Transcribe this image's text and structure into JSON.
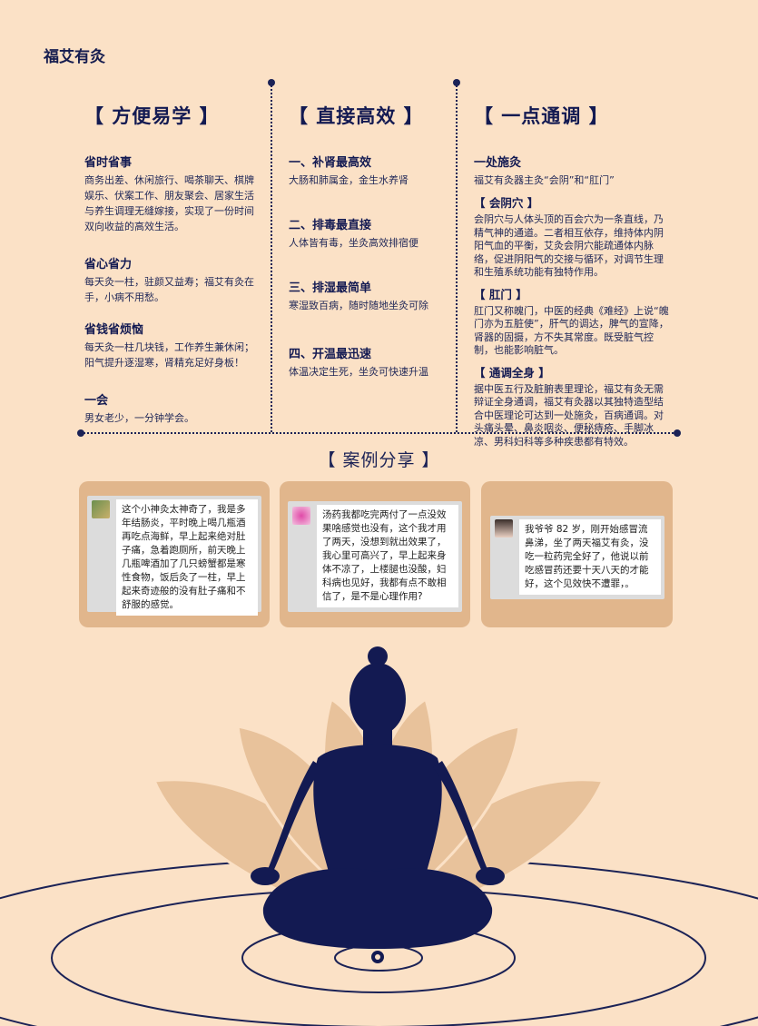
{
  "brand": "福艾有灸",
  "columns": [
    {
      "title": "【 方便易学 】",
      "sections": [
        {
          "heading": "省时省事",
          "text": "商务出差、休闲旅行、喝茶聊天、棋牌娱乐、伏案工作、朋友聚会、居家生活与养生调理无缝嫁接，实现了一份时间双向收益的高效生活。"
        },
        {
          "heading": "省心省力",
          "text": "每天灸一柱，驻颜又益寿；福艾有灸在手，小病不用愁。"
        },
        {
          "heading": "省钱省烦恼",
          "text": "每天灸一柱几块钱，工作养生兼休闲；阳气提升逐湿寒，肾精充足好身板！"
        },
        {
          "heading": "一会",
          "text": "男女老少，一分钟学会。"
        }
      ]
    },
    {
      "title": "【 直接高效 】",
      "sections": [
        {
          "heading": "一、补肾最高效",
          "text": "大肠和肺属金，金生水养肾"
        },
        {
          "heading": "二、排毒最直接",
          "text": "人体皆有毒，坐灸高效排宿便"
        },
        {
          "heading": "三、排湿最简单",
          "text": "寒湿致百病，随时随地坐灸可除"
        },
        {
          "heading": "四、开温最迅速",
          "text": "体温决定生死，坐灸可快速升温"
        }
      ]
    },
    {
      "title": "【 一点通调 】",
      "intro_heading": "一处施灸",
      "intro_text": "福艾有灸器主灸“会阴”和“肛门”",
      "tags": [
        {
          "label": "【 会阴穴 】",
          "text": "会阴穴与人体头顶的百会穴为一条直线，乃精气神的通道。二者相互依存，维持体内阴阳气血的平衡，艾灸会阴穴能疏通体内脉络，促进阴阳气的交接与循环，对调节生理和生殖系统功能有独特作用。"
        },
        {
          "label": "【 肛门 】",
          "text": "肛门又称魄门，中医的经典《难经》上说“魄门亦为五脏使”，肝气的调达，脾气的宣降，肾器的固摄，方不失其常度。既受脏气控制，也能影响脏气。"
        },
        {
          "label": "【 通调全身 】",
          "text": "据中医五行及脏腑表里理论，福艾有灸无需辩证全身通调，福艾有灸器以其独特造型结合中医理论可达到一处施灸，百病通调。对头痛头晕、鼻炎咽炎、便秘痔疮、手脚冰凉、男科妇科等多种疾患都有特效。"
        }
      ]
    }
  ],
  "case_section": {
    "title": "【 案例分享 】",
    "cases": [
      {
        "avatar_icon": "avatar-photo-icon",
        "text": "这个小神灸太神奇了，我是多年结肠炎，平时晚上喝几瓶酒再吃点海鲜，早上起来绝对肚子痛，急着跑厕所，前天晚上几瓶啤酒加了几只螃蟹都是寒性食物，饭后灸了一柱，早上起来奇迹般的没有肚子痛和不舒服的感觉。"
      },
      {
        "avatar_icon": "avatar-flower-icon",
        "text": "汤药我都吃完两付了一点没效果啥感觉也没有，这个我才用了两天，没想到就出效果了，我心里可高兴了，早上起来身体不凉了，上楼腿也没酸，妇科病也见好，我都有点不敢相信了，是不是心理作用?"
      },
      {
        "avatar_icon": "avatar-woman-icon",
        "text": "我爷爷 82 岁，刚开始感冒流鼻涕，坐了两天福艾有灸，没吃一粒药完全好了，他说以前吃感冒药还要十天八天的才能好，这个见效快不遭罪，。"
      }
    ]
  },
  "colors": {
    "background": "#fbe1c6",
    "navy": "#1b2256",
    "card": "#e1b68c",
    "lotus": "#e8c29b"
  }
}
